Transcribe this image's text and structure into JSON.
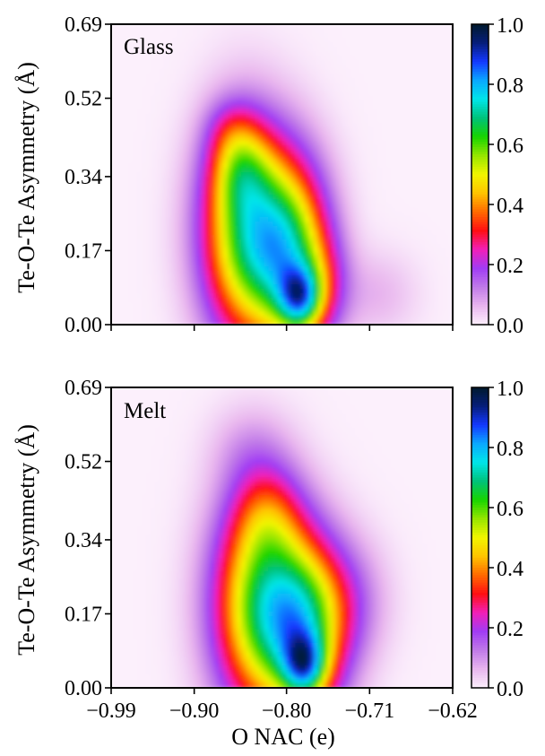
{
  "chart_data": [
    {
      "type": "heatmap",
      "panel_label": "Glass",
      "xlabel": "",
      "ylabel": "Te-O-Te Asymmetry (Å)",
      "xlim": [
        -0.99,
        -0.62
      ],
      "ylim": [
        0.0,
        0.69
      ],
      "xticks": [
        -0.99,
        -0.9,
        -0.8,
        -0.71,
        -0.62
      ],
      "xtick_labels": [],
      "yticks": [
        0.0,
        0.17,
        0.34,
        0.52,
        0.69
      ],
      "ytick_labels": [
        "0.00",
        "0.17",
        "0.34",
        "0.52",
        "0.69"
      ],
      "colorbar": {
        "min": 0.0,
        "max": 1.0,
        "ticks": [
          0.0,
          0.2,
          0.4,
          0.6,
          0.8,
          1.0
        ],
        "tick_labels": [
          "0.0",
          "0.2",
          "0.4",
          "0.6",
          "0.8",
          "1.0"
        ]
      },
      "grid": false,
      "density_blobs": [
        {
          "x": -0.845,
          "y": 0.21,
          "sx": 0.034,
          "sy": 0.17,
          "a": 0.58
        },
        {
          "x": -0.795,
          "y": 0.16,
          "sx": 0.03,
          "sy": 0.15,
          "a": 0.55
        },
        {
          "x": -0.785,
          "y": 0.06,
          "sx": 0.016,
          "sy": 0.05,
          "a": 0.38
        },
        {
          "x": -0.85,
          "y": 0.36,
          "sx": 0.022,
          "sy": 0.07,
          "a": 0.2
        },
        {
          "x": -0.76,
          "y": 0.09,
          "sx": 0.02,
          "sy": 0.08,
          "a": 0.12
        },
        {
          "x": -0.86,
          "y": 0.45,
          "sx": 0.02,
          "sy": 0.05,
          "a": 0.08
        },
        {
          "x": -0.7,
          "y": 0.07,
          "sx": 0.03,
          "sy": 0.07,
          "a": 0.06
        }
      ]
    },
    {
      "type": "heatmap",
      "panel_label": "Melt",
      "xlabel": "O NAC (e)",
      "ylabel": "Te-O-Te Asymmetry (Å)",
      "xlim": [
        -0.99,
        -0.62
      ],
      "ylim": [
        0.0,
        0.69
      ],
      "xticks": [
        -0.99,
        -0.9,
        -0.8,
        -0.71,
        -0.62
      ],
      "xtick_labels": [
        "−0.99",
        "−0.90",
        "−0.80",
        "−0.71",
        "−0.62"
      ],
      "yticks": [
        0.0,
        0.17,
        0.34,
        0.52,
        0.69
      ],
      "ytick_labels": [
        "0.00",
        "0.17",
        "0.34",
        "0.52",
        "0.69"
      ],
      "colorbar": {
        "min": 0.0,
        "max": 1.0,
        "ticks": [
          0.0,
          0.2,
          0.4,
          0.6,
          0.8,
          1.0
        ],
        "tick_labels": [
          "0.0",
          "0.2",
          "0.4",
          "0.6",
          "0.8",
          "1.0"
        ]
      },
      "grid": false,
      "density_blobs": [
        {
          "x": -0.83,
          "y": 0.19,
          "sx": 0.036,
          "sy": 0.17,
          "a": 0.55
        },
        {
          "x": -0.78,
          "y": 0.14,
          "sx": 0.032,
          "sy": 0.14,
          "a": 0.55
        },
        {
          "x": -0.78,
          "y": 0.05,
          "sx": 0.016,
          "sy": 0.05,
          "a": 0.35
        },
        {
          "x": -0.82,
          "y": 0.4,
          "sx": 0.026,
          "sy": 0.08,
          "a": 0.16
        },
        {
          "x": -0.84,
          "y": 0.55,
          "sx": 0.03,
          "sy": 0.07,
          "a": 0.06
        },
        {
          "x": -0.73,
          "y": 0.2,
          "sx": 0.03,
          "sy": 0.1,
          "a": 0.1
        }
      ]
    }
  ],
  "colors": {
    "colormap": [
      "#fcf0fc",
      "#e8b5ee",
      "#c07ae8",
      "#a13cf4",
      "#f21fb8",
      "#ff0f12",
      "#ff6a00",
      "#ffc400",
      "#f2f500",
      "#96e600",
      "#18d400",
      "#00c27a",
      "#00e6ea",
      "#0aa8ff",
      "#1438ff",
      "#061e7a",
      "#001a2e"
    ]
  }
}
